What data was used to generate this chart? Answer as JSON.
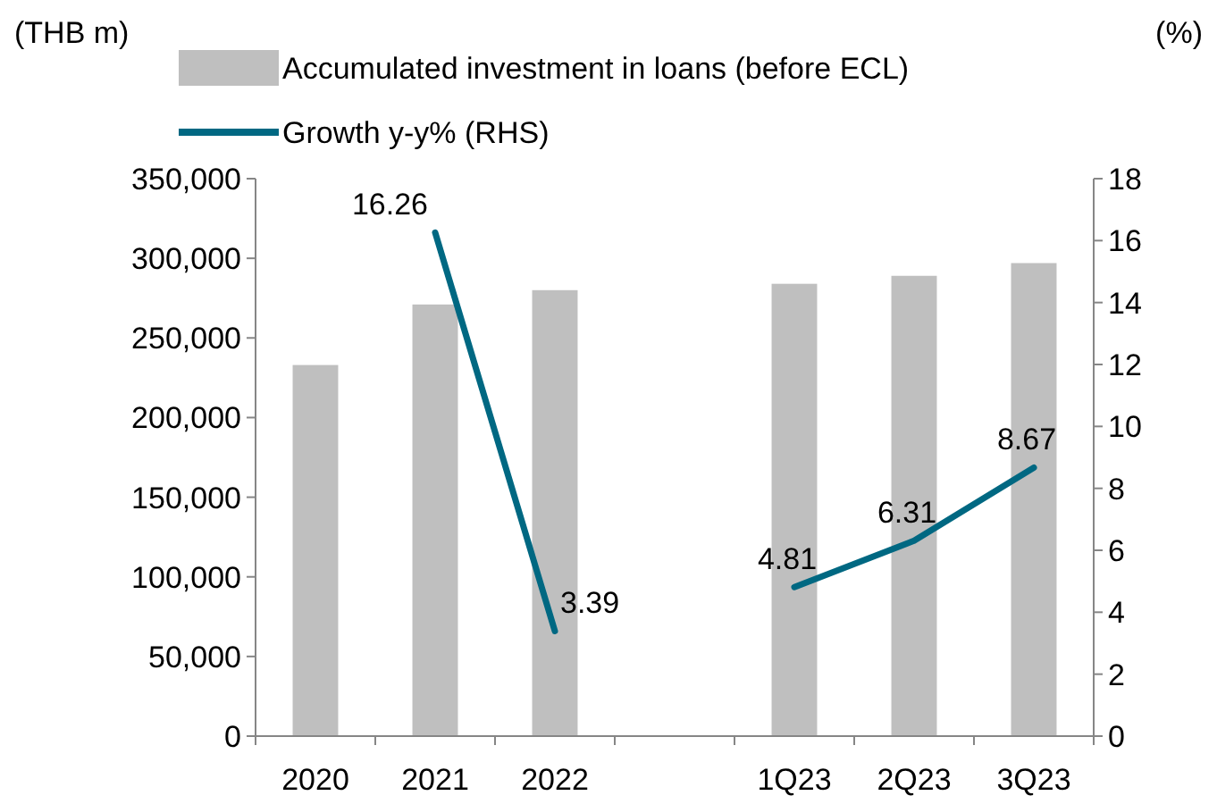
{
  "chart_data": {
    "type": "bar",
    "categories": [
      "2020",
      "2021",
      "2022",
      null,
      "1Q23",
      "2Q23",
      "3Q23"
    ],
    "ylabel": "(THB m)",
    "y2label": "(%)",
    "ylim": [
      0,
      350000
    ],
    "yticks": [
      0,
      {
        "value": 50000,
        "label": "50,000"
      },
      {
        "value": 100000,
        "label": "100,000"
      },
      {
        "value": 150000,
        "label": "150,000"
      },
      {
        "value": 200000,
        "label": "200,000"
      },
      {
        "value": 250000,
        "label": "250,000"
      },
      {
        "value": 300000,
        "label": "300,000"
      },
      {
        "value": 350000,
        "label": "350,000"
      }
    ],
    "y2lim": [
      0,
      18
    ],
    "y2ticks": [
      0,
      2,
      4,
      6,
      8,
      10,
      12,
      14,
      16,
      18
    ],
    "legend": "top",
    "grid": false,
    "series": [
      {
        "name": "Accumulated investment in loans (before ECL)",
        "color": "#bfbfbf",
        "values": [
          233000,
          271000,
          280000,
          null,
          284000,
          289000,
          297000
        ]
      },
      {
        "type": "line",
        "axis": "y2",
        "name": "Growth y-y% (RHS)",
        "color": "#006882",
        "values": [
          null,
          16.26,
          3.39,
          null,
          4.81,
          6.31,
          8.67
        ],
        "value_labels": [
          null,
          "16.26",
          "3.39",
          null,
          "4.81",
          "6.31",
          "8.67"
        ]
      }
    ]
  }
}
